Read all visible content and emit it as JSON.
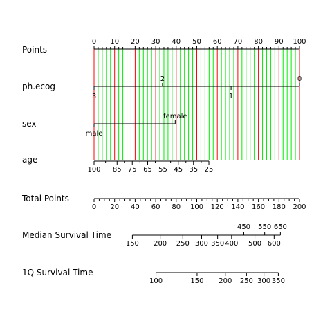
{
  "chart_data": {
    "type": "nomogram",
    "title": "",
    "points_scale": {
      "label": "Points",
      "min": 0,
      "max": 100,
      "major_step": 10,
      "minor_step": 2
    },
    "variables": [
      {
        "label": "ph.ecog",
        "levels": [
          {
            "value": "0",
            "points": 100
          },
          {
            "value": "1",
            "points": 66.7
          },
          {
            "value": "2",
            "points": 33.3
          },
          {
            "value": "3",
            "points": 0
          }
        ]
      },
      {
        "label": "sex",
        "levels": [
          {
            "value": "female",
            "points": 39.5
          },
          {
            "value": "male",
            "points": 0
          }
        ]
      },
      {
        "label": "age",
        "ticks": [
          {
            "value": "100",
            "points": 0
          },
          {
            "value": "85",
            "points": 11.2
          },
          {
            "value": "75",
            "points": 18.6
          },
          {
            "value": "65",
            "points": 26.1
          },
          {
            "value": "55",
            "points": 33.5
          },
          {
            "value": "45",
            "points": 41
          },
          {
            "value": "35",
            "points": 48.4
          },
          {
            "value": "25",
            "points": 55.9
          }
        ]
      }
    ],
    "total_points": {
      "label": "Total Points",
      "min": 0,
      "max": 200,
      "major_step": 20,
      "minor_step": 5
    },
    "outcome_scales": [
      {
        "label": "Median Survival Time",
        "ticks": [
          {
            "value": "150",
            "total": 37.3
          },
          {
            "value": "200",
            "total": 64.4
          },
          {
            "value": "250",
            "total": 86.4
          },
          {
            "value": "300",
            "total": 104.7
          },
          {
            "value": "350",
            "total": 120.3
          },
          {
            "value": "400",
            "total": 133.9
          },
          {
            "value": "450",
            "total": 145.8
          },
          {
            "value": "500",
            "total": 156.6
          },
          {
            "value": "550",
            "total": 166.1
          },
          {
            "value": "600",
            "total": 175.3
          },
          {
            "value": "650",
            "total": 181.4
          }
        ]
      },
      {
        "label": "1Q Survival Time",
        "ticks": [
          {
            "value": "100",
            "total": 60.3
          },
          {
            "value": "150",
            "total": 100.3
          },
          {
            "value": "200",
            "total": 127.8
          },
          {
            "value": "250",
            "total": 148.4
          },
          {
            "value": "300",
            "total": 165.4
          },
          {
            "value": "350",
            "total": 179.4
          }
        ]
      }
    ],
    "gridlines": {
      "show": true,
      "major_color": "#ff0000",
      "minor_color": "#00ee00"
    }
  }
}
